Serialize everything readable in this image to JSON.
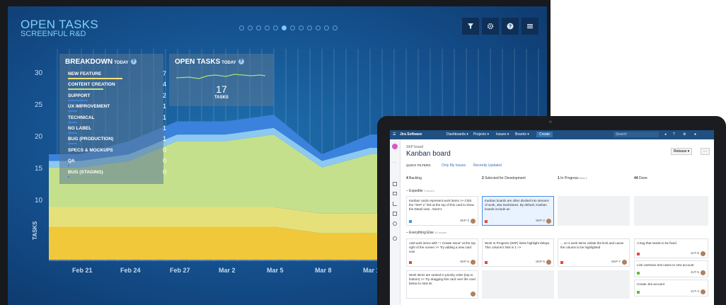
{
  "dashboard": {
    "title": "OPEN TASKS",
    "subtitle": "SCREENFUL R&D",
    "y_ticks": [
      "30",
      "25",
      "20",
      "15",
      "10"
    ],
    "y_axis_label": "TASKS",
    "x_ticks": [
      "Feb 21",
      "Feb 24",
      "Feb 27",
      "Mar 2",
      "Mar 5",
      "Mar 8",
      "Mar 1"
    ],
    "toolbar_icons": [
      "filter-icon",
      "gear-icon",
      "help-icon",
      "menu-icon"
    ],
    "breakdown": {
      "title": "BREAKDOWN",
      "period": "TODAY",
      "rows": [
        {
          "name": "NEW FEATURE",
          "value": "7",
          "color": "#f1e27a",
          "fill": 0.7
        },
        {
          "name": "CONTENT CREATION",
          "value": "4",
          "color": "#c6e07d",
          "fill": 0.45
        },
        {
          "name": "SUPPORT",
          "value": "2",
          "color": "#3c82d6",
          "fill": 0.25
        },
        {
          "name": "UX IMPROVEMENT",
          "value": "1",
          "color": "#3c82d6",
          "fill": 0.12
        },
        {
          "name": "TECHNICAL",
          "value": "1",
          "color": "#3c82d6",
          "fill": 0.12
        },
        {
          "name": "NO LABEL",
          "value": "1",
          "color": "#3c82d6",
          "fill": 0.12
        },
        {
          "name": "BUG (PRODUCTION)",
          "value": "1",
          "color": "#3c82d6",
          "fill": 0.12
        },
        {
          "name": "SPECS & MOCKUPS",
          "value": "0",
          "color": "#3c82d6",
          "fill": 0.02
        },
        {
          "name": "QA",
          "value": "0",
          "color": "#3c82d6",
          "fill": 0.02
        },
        {
          "name": "BUG (STAGING)",
          "value": "0",
          "color": "#3c82d6",
          "fill": 0.02
        }
      ]
    },
    "open_tasks": {
      "title": "OPEN TASKS",
      "period": "TODAY",
      "value": "17",
      "unit": "TASKS"
    }
  },
  "chart_data": {
    "type": "area",
    "x": [
      "Feb 21",
      "Feb 24",
      "Feb 27",
      "Mar 2",
      "Mar 5",
      "Mar 8",
      "Mar 1"
    ],
    "ylabel": "TASKS",
    "ylim": [
      0,
      32
    ],
    "series": [
      {
        "values": [
          5,
          5,
          5,
          5,
          5,
          4,
          4
        ],
        "color": "#f0c83a"
      },
      {
        "values": [
          3,
          3,
          3,
          3,
          3,
          3,
          3
        ],
        "color": "#e6e07a"
      },
      {
        "values": [
          6,
          7,
          10,
          10,
          11,
          7,
          9
        ],
        "color": "#c5e08c"
      },
      {
        "values": [
          1,
          1,
          1,
          1,
          1,
          1,
          1
        ],
        "color": "#8cc8f0"
      },
      {
        "values": [
          1,
          2,
          2,
          2,
          2,
          1,
          2
        ],
        "color": "#3a82dc"
      }
    ],
    "grid": true
  },
  "jira": {
    "brand": "Jira Software",
    "nav": [
      "Dashboards ▾",
      "Projects ▾",
      "Issues ▾",
      "Boards ▾"
    ],
    "create": "Create",
    "search_placeholder": "Search",
    "breadcrumb": "SKP board",
    "board_title": "Kanban board",
    "quick_filters_label": "QUICK FILTERS:",
    "filters": [
      "Only My Issues",
      "Recently Updated"
    ],
    "release_btn": "Release ▾",
    "more_btn": "···",
    "columns": [
      {
        "count": "4",
        "name": "Backlog"
      },
      {
        "count": "2",
        "name": "Selected for Development"
      },
      {
        "count": "1",
        "name": "In Progress"
      },
      {
        "count": "44",
        "name": "Done"
      }
    ],
    "wip_note": "Max 1",
    "swimlanes": [
      {
        "name": "Expedite",
        "count": "2 issues"
      },
      {
        "name": "Everything Else",
        "count": "49 issues"
      }
    ],
    "cards": [
      {
        "text": "Kanban cards represent work items >> Click the \"SKP-1\" link at the top of this card to show the Detail view - there's",
        "id": "SKP-3"
      },
      {
        "text": "Kanban boards are often divided into streams of work, aka Swimlanes. By default, Kanban boards include an",
        "id": "SKP-2"
      },
      {
        "text": "Add work items with \"+ Create Issue\" at the top right of the screen >> Try adding a new card now",
        "id": "SKP-6"
      },
      {
        "text": "Work In Progress (WIP) limits highlight delays. This column's limit is 1 >>",
        "id": "SKP-5"
      },
      {
        "text": "... so 2 work items violate the limit and cause the column to be highlighted",
        "id": "SKP-7"
      },
      {
        "text": "A bug that needs to be fixed",
        "id": "JUT-6"
      },
      {
        "text": "Link Usetrace test cases to new account",
        "id": "JUT-5"
      },
      {
        "text": "Work items are ranked in priority order (top to bottom) >> Try dragging this card over the card below to rank its",
        "id": ""
      },
      {
        "text": "Create Jira account",
        "id": "JUT-4"
      }
    ]
  }
}
